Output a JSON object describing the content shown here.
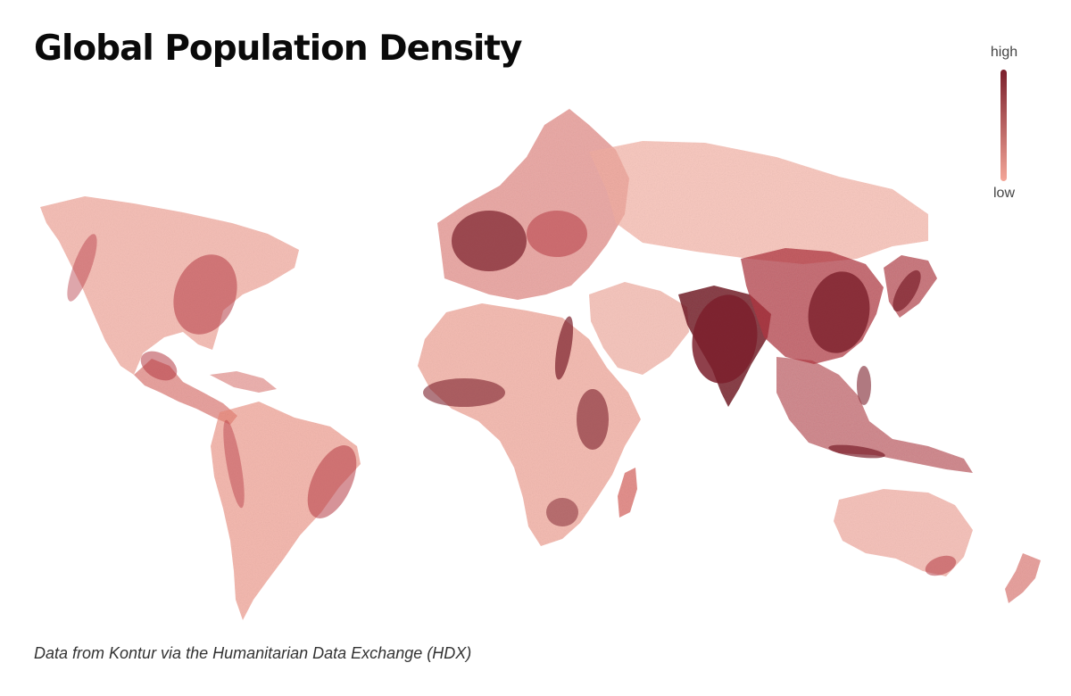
{
  "title": "Global Population Density",
  "legend": {
    "high_label": "high",
    "low_label": "low",
    "high_color": "#7b1f2b",
    "low_color": "#f4a698"
  },
  "source_note": "Data from Kontur via the Humanitarian Data Exchange (HDX)",
  "map": {
    "projection": "world",
    "palette": [
      "#f6b3a6",
      "#ec8b7a",
      "#d9605a",
      "#b53a44",
      "#7b1f2b"
    ],
    "regions": [
      "North America",
      "Central America",
      "South America",
      "Europe",
      "Africa",
      "Middle East",
      "Russia",
      "South Asia",
      "East Asia",
      "Southeast Asia",
      "Australia",
      "New Zealand"
    ]
  }
}
